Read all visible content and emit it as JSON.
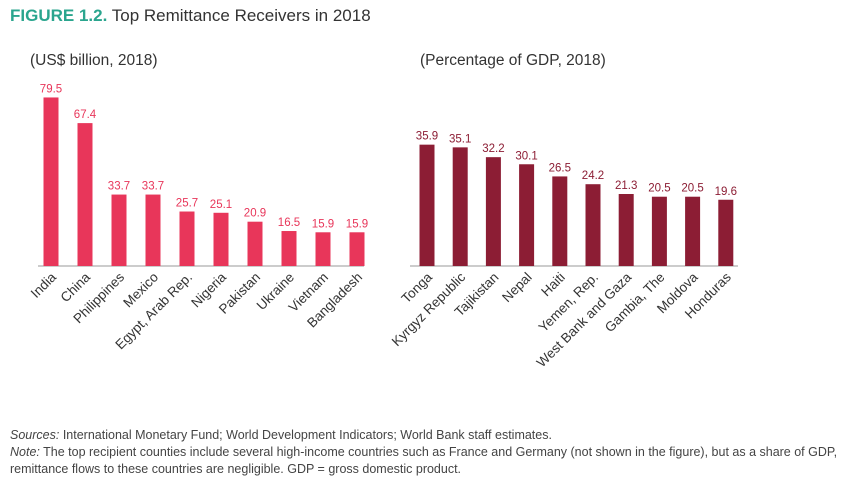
{
  "figure": {
    "label": "FIGURE 1.2.",
    "title": "Top Remittance Receivers in 2018"
  },
  "footer": {
    "sources_label": "Sources:",
    "sources_text": "International Monetary Fund; World Development Indicators; World Bank staff estimates.",
    "note_label": "Note:",
    "note_text": "The top recipient counties include several high-income countries such as France and Germany (not shown in the figure), but as a share of GDP, remittance flows to these countries are negligible. GDP = gross domestic product."
  },
  "colors": {
    "left_bar": "#e8365a",
    "right_bar": "#8c1d34",
    "title_accent": "#2aa58e"
  },
  "chart_data": [
    {
      "type": "bar",
      "subtitle": "(US$ billion, 2018)",
      "categories": [
        "India",
        "China",
        "Philippines",
        "Mexico",
        "Egypt, Arab Rep.",
        "Nigeria",
        "Pakistan",
        "Ukraine",
        "Vietnam",
        "Bangladesh"
      ],
      "values": [
        79.5,
        67.4,
        33.7,
        33.7,
        25.7,
        25.1,
        20.9,
        16.5,
        15.9,
        15.9
      ],
      "value_labels": [
        "79.5",
        "67.4",
        "33.7",
        "33.7",
        "25.7",
        "25.1",
        "20.9",
        "16.5",
        "15.9",
        "15.9"
      ],
      "ylim": [
        0,
        80
      ],
      "grid": false,
      "color": "#e8365a"
    },
    {
      "type": "bar",
      "subtitle": "(Percentage of GDP, 2018)",
      "categories": [
        "Tonga",
        "Kyrgyz Republic",
        "Tajikistan",
        "Nepal",
        "Haiti",
        "Yemen, Rep.",
        "West Bank and Gaza",
        "Gambia, The",
        "Moldova",
        "Honduras"
      ],
      "values": [
        35.9,
        35.1,
        32.2,
        30.1,
        26.5,
        24.2,
        21.3,
        20.5,
        20.5,
        19.6
      ],
      "value_labels": [
        "35.9",
        "35.1",
        "32.2",
        "30.1",
        "26.5",
        "24.2",
        "21.3",
        "20.5",
        "20.5",
        "19.6"
      ],
      "ylim": [
        0,
        36
      ],
      "grid": false,
      "color": "#8c1d34"
    }
  ]
}
